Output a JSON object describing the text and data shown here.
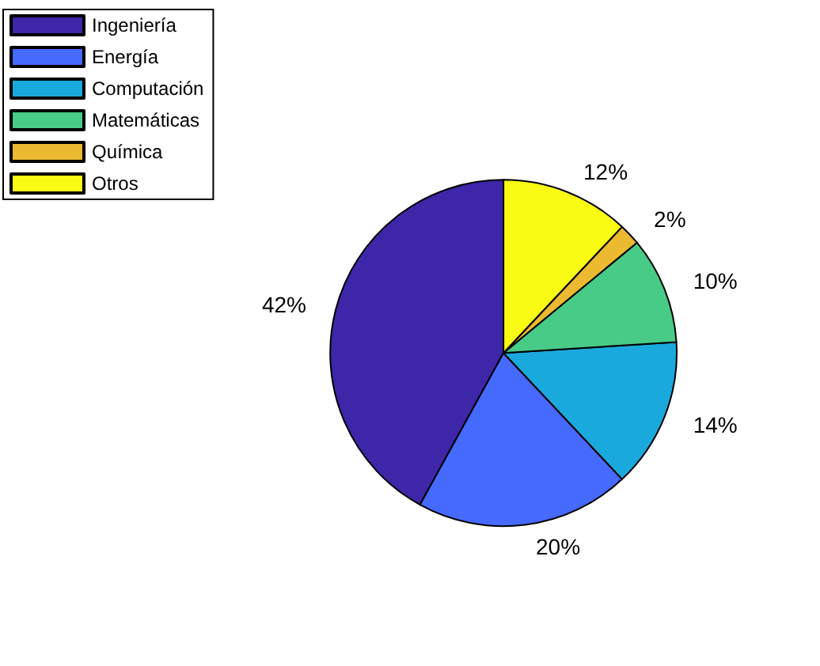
{
  "chart_data": {
    "type": "pie",
    "categories": [
      "Ingeniería",
      "Energía",
      "Computación",
      "Matemáticas",
      "Química",
      "Otros"
    ],
    "values": [
      42,
      20,
      14,
      10,
      2,
      12
    ],
    "colors": [
      "#3e26a8",
      "#4669fe",
      "#1aa9dc",
      "#48cb86",
      "#ebba30",
      "#f9fb15"
    ],
    "value_labels": [
      "42%",
      "20%",
      "14%",
      "10%",
      "2%",
      "12%"
    ],
    "legend": "top left"
  }
}
